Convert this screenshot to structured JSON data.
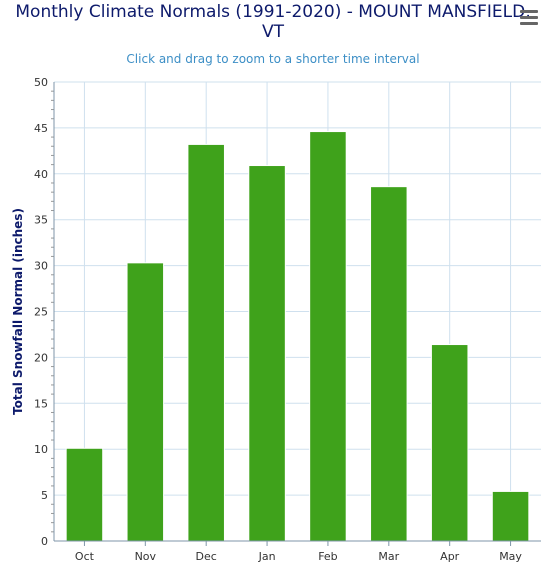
{
  "header": {
    "title_line1": "Monthly Climate Normals (1991-2020) - MOUNT MANSFIELD,",
    "title_line2": "VT",
    "subtitle": "Click and drag to zoom to a shorter time interval",
    "menu_icon": "hamburger-menu-icon"
  },
  "chart_data": {
    "type": "bar",
    "title": "Monthly Climate Normals (1991-2020) - MOUNT MANSFIELD, VT",
    "subtitle": "Click and drag to zoom to a shorter time interval",
    "ylabel": "Total Snowfall Normal (inches)",
    "xlabel": "",
    "categories": [
      "Oct",
      "Nov",
      "Dec",
      "Jan",
      "Feb",
      "Mar",
      "Apr",
      "May"
    ],
    "values": [
      10.1,
      30.3,
      43.2,
      40.9,
      44.6,
      38.6,
      21.4,
      5.4
    ],
    "ylim": [
      0,
      50
    ],
    "yticks": [
      "0",
      "5",
      "10",
      "15",
      "20",
      "25",
      "30",
      "35",
      "40",
      "45",
      "50"
    ],
    "bar_color": "#3fa21b",
    "grid": true,
    "legend": "none"
  }
}
